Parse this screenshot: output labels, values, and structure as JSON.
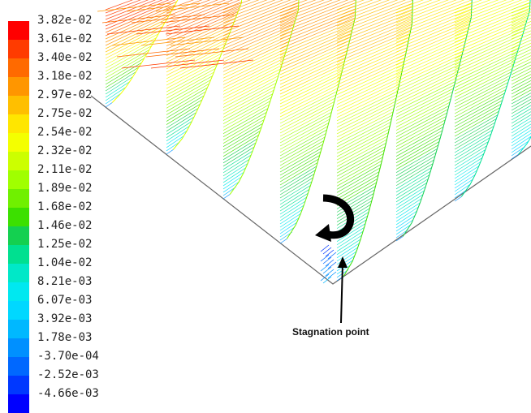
{
  "legend": {
    "labels": [
      "3.82e-02",
      "3.61e-02",
      "3.40e-02",
      "3.18e-02",
      "2.97e-02",
      "2.75e-02",
      "2.54e-02",
      "2.32e-02",
      "2.11e-02",
      "1.89e-02",
      "1.68e-02",
      "1.46e-02",
      "1.25e-02",
      "1.04e-02",
      "8.21e-03",
      "6.07e-03",
      "3.92e-03",
      "1.78e-03",
      "-3.70e-04",
      "-2.52e-03",
      "-4.66e-03"
    ],
    "colors": [
      "#ff0000",
      "#ff3b00",
      "#ff6a00",
      "#ff9600",
      "#ffbf00",
      "#ffe600",
      "#f4ff00",
      "#ccff00",
      "#a0ff00",
      "#70f000",
      "#3ce000",
      "#14d050",
      "#00e090",
      "#00e8c8",
      "#00e8f0",
      "#00d8ff",
      "#00b8ff",
      "#0090ff",
      "#0068ff",
      "#0038ff",
      "#0000ff"
    ]
  },
  "annotation": {
    "label": "Stagnation point"
  }
}
